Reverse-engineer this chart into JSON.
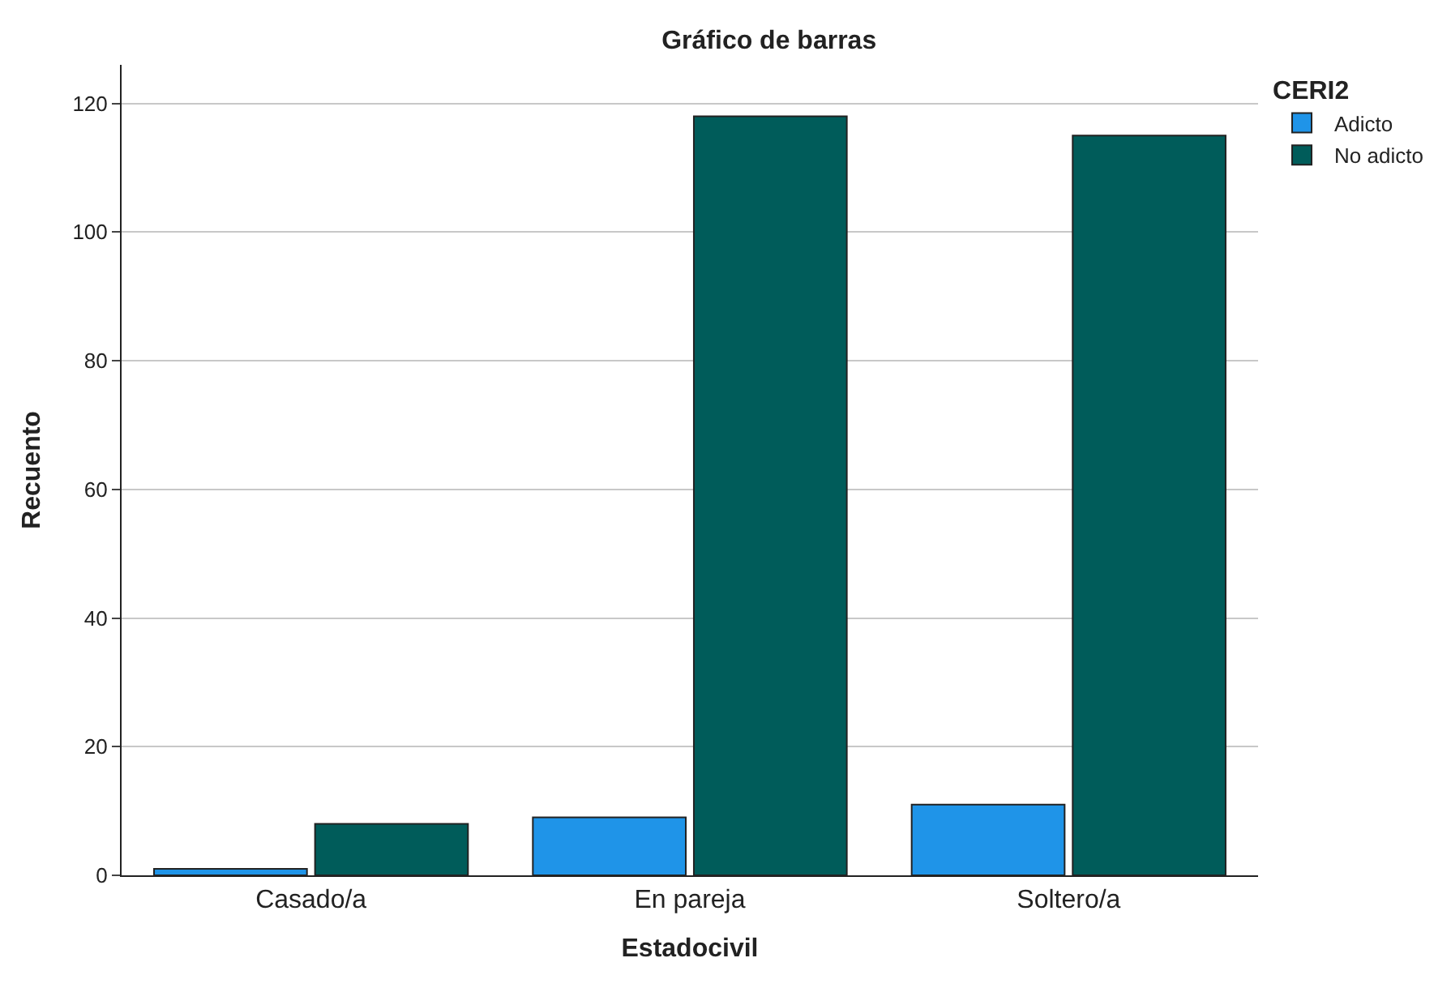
{
  "chart_data": {
    "type": "bar",
    "title": "Gráfico de barras",
    "xlabel": "Estadocivil",
    "ylabel": "Recuento",
    "legend_title": "CERI2",
    "categories": [
      "Casado/a",
      "En pareja",
      "Soltero/a"
    ],
    "series": [
      {
        "name": "Adicto",
        "color": "#1f94e8",
        "values": [
          1,
          9,
          11
        ]
      },
      {
        "name": "No adicto",
        "color": "#005c5a",
        "values": [
          8,
          118,
          115
        ]
      }
    ],
    "ylim": [
      0,
      126
    ],
    "yticks": [
      0,
      20,
      40,
      60,
      80,
      100,
      120
    ],
    "grid": "y",
    "legend": "top right"
  }
}
